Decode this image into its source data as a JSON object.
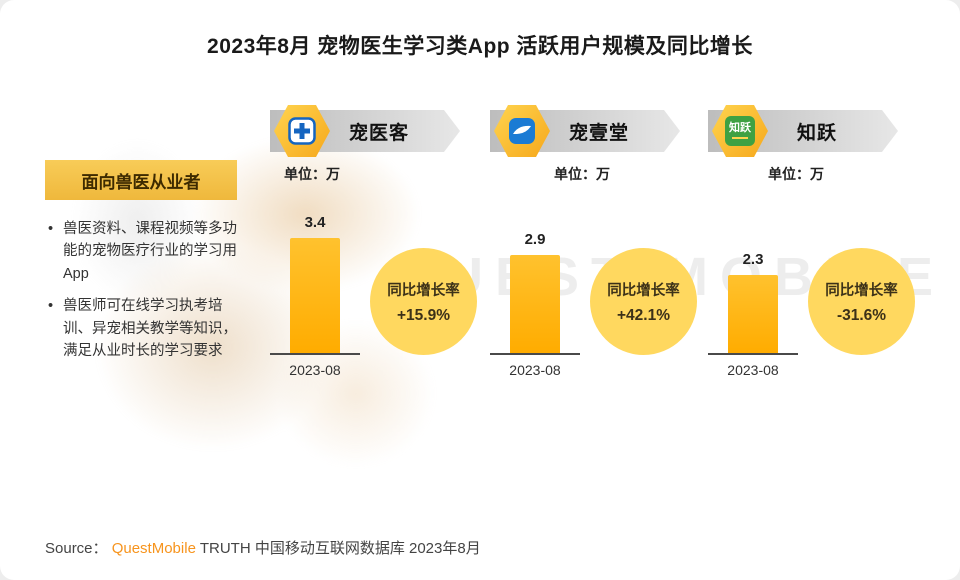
{
  "title": "2023年8月 宠物医生学习类App 活跃用户规模及同比增长",
  "watermark": "QUEST MOBILE",
  "left_panel": {
    "tag": "面向兽医从业者",
    "bullets": [
      "兽医资料、课程视频等多功能的宠物医疗行业的学习用App",
      "兽医师可在线学习执考培训、异宠相关教学等知识，满足从业时长的学习要求"
    ]
  },
  "chart_data": {
    "type": "bar",
    "unit_label": "单位：万",
    "ylim": [
      0,
      3.6
    ],
    "bar_color": "#FFB412",
    "badge_color": "#FFD85F",
    "categories": [
      "宠医客",
      "宠壹堂",
      "知跃"
    ],
    "values": [
      3.4,
      2.9,
      2.3
    ],
    "apps": [
      {
        "name": "宠医客",
        "value": 3.4,
        "x": "2023-08",
        "growth_label": "同比增长率",
        "growth": "+15.9%"
      },
      {
        "name": "宠壹堂",
        "value": 2.9,
        "x": "2023-08",
        "growth_label": "同比增长率",
        "growth": "+42.1%"
      },
      {
        "name": "知跃",
        "value": 2.3,
        "x": "2023-08",
        "growth_label": "同比增长率",
        "growth": "-31.6%",
        "icon_text": "知跃"
      }
    ]
  },
  "source": {
    "prefix": "Source：",
    "brand": "QuestMobile",
    "suffix": " TRUTH 中国移动互联网数据库 2023年8月"
  }
}
